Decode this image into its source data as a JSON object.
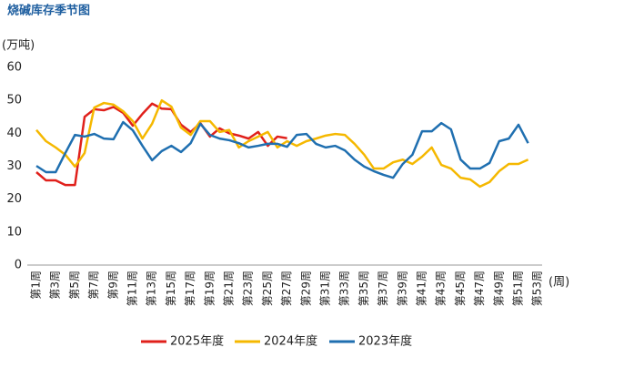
{
  "chart_data": {
    "type": "line",
    "title": "烧碱库存季节图",
    "y_label": "(万吨)",
    "x_label": "(周)",
    "categories": [
      "第1周",
      null,
      "第3周",
      null,
      "第5周",
      null,
      "第7周",
      null,
      "第9周",
      null,
      "第11周",
      null,
      "第13周",
      null,
      "第15周",
      null,
      "第17周",
      null,
      "第19周",
      null,
      "第21周",
      null,
      "第23周",
      null,
      "第25周",
      null,
      "第27周",
      null,
      "第29周",
      null,
      "第31周",
      null,
      "第33周",
      null,
      "第35周",
      null,
      "第37周",
      null,
      "第39周",
      null,
      "第41周",
      null,
      "第43周",
      null,
      "第45周",
      null,
      "第47周",
      null,
      "第49周",
      null,
      "第51周",
      null,
      "第53周"
    ],
    "ylim": [
      0,
      60
    ],
    "yticks": [
      0,
      10,
      20,
      30,
      40,
      50,
      60
    ],
    "legend": "bottom",
    "series": [
      {
        "name": "2025年度",
        "color": "#e0201b",
        "values": [
          28.2,
          25.7,
          25.7,
          24.3,
          24.3,
          45,
          47.3,
          47,
          48,
          46.2,
          42.3,
          45.9,
          49,
          47.5,
          47.3,
          42.6,
          40.4,
          43.1,
          39,
          41.5,
          40,
          39.3,
          38.4,
          40.4,
          36.2,
          39,
          38.5,
          null,
          null,
          null,
          null,
          null,
          null,
          null,
          null,
          null,
          null,
          null,
          null,
          null,
          null,
          null,
          null,
          null,
          null,
          null,
          null,
          null,
          null,
          null,
          null,
          null,
          null
        ]
      },
      {
        "name": "2024年度",
        "color": "#f5b800",
        "values": [
          41,
          37.6,
          35.7,
          33.5,
          29.9,
          34,
          47.8,
          49.2,
          48.7,
          46.7,
          43.7,
          38.4,
          42.9,
          50,
          48.1,
          41.7,
          39.5,
          43.7,
          43.7,
          40.4,
          41,
          35.7,
          37.6,
          39,
          40.4,
          35.7,
          37.6,
          36.2,
          37.6,
          38.4,
          39.3,
          39.8,
          39.5,
          36.8,
          33.5,
          29.3,
          29.3,
          31.2,
          32,
          30.7,
          32.9,
          35.7,
          30.4,
          29.3,
          26.5,
          26,
          23.8,
          25.2,
          28.5,
          30.7,
          30.7,
          32,
          null
        ]
      },
      {
        "name": "2023年度",
        "color": "#1f6fb0",
        "values": [
          30.1,
          28.2,
          28.2,
          34,
          39.5,
          39,
          39.8,
          38.4,
          38.2,
          43.4,
          40.9,
          36.2,
          31.8,
          34.6,
          36.2,
          34.3,
          37,
          42.9,
          39.5,
          38.4,
          37.9,
          37,
          35.7,
          36.2,
          36.8,
          36.8,
          35.9,
          39.5,
          39.8,
          36.8,
          35.7,
          36.2,
          34.8,
          32,
          29.9,
          28.5,
          27.4,
          26.5,
          30.7,
          33.5,
          40.6,
          40.6,
          43.1,
          41.2,
          32,
          29.3,
          29.3,
          31,
          37.6,
          38.4,
          42.6,
          37,
          null
        ]
      }
    ]
  }
}
